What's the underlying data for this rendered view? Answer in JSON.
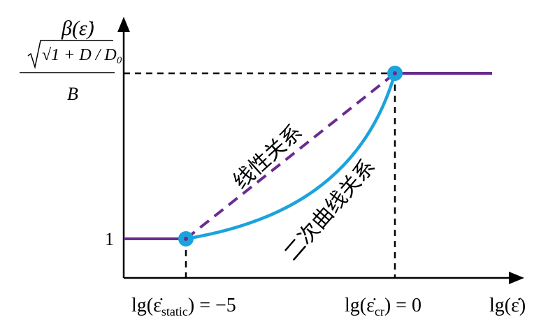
{
  "diagram": {
    "y_axis_label": "β(ε̇)",
    "x_axis_label": "lg(ε̇)",
    "y_tick_one": "1",
    "y_tick_top": {
      "numerator": "√1 + D / D₀",
      "denominator": "B"
    },
    "x_tick_static": "lg(ε̇static) = −5",
    "x_tick_static_parts": {
      "prefix": "lg(ε̇",
      "subscript": "static",
      "suffix": ") = −5"
    },
    "x_tick_cr": "lg(ε̇cr) = 0",
    "x_tick_cr_parts": {
      "prefix": "lg(ε̇",
      "subscript": "cr",
      "suffix": ") = 0"
    },
    "linear_label": "线性关系",
    "quadratic_label": "二次曲线关系"
  },
  "colors": {
    "axis": "#000000",
    "plateau": "#6a2c91",
    "linear_dashed": "#6a2c91",
    "quadratic_curve": "#1aa3dc",
    "marker_fill": "#1aa3dc",
    "marker_center": "#6a2c91",
    "guide_dashed": "#000000"
  }
}
